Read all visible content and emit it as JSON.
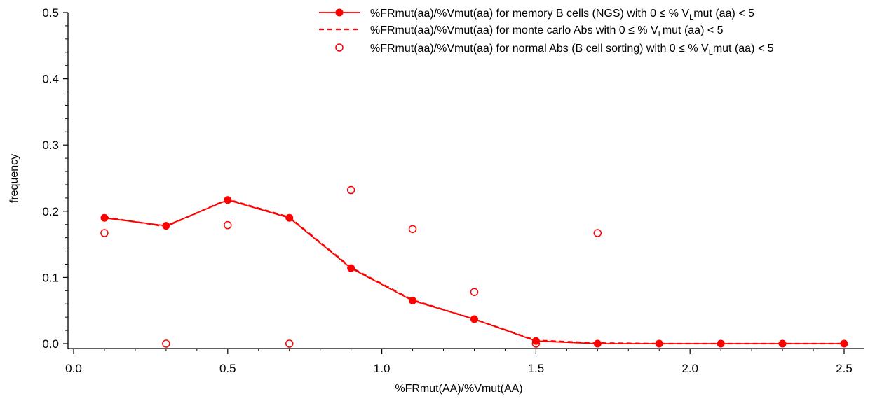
{
  "chart_data": {
    "type": "line",
    "xlabel": "%FRmut(AA)/%Vmut(AA)",
    "ylabel": "frequency",
    "xlim": [
      0.0,
      2.5
    ],
    "ylim": [
      0.0,
      0.5
    ],
    "x_ticks": [
      "0.0",
      "0.5",
      "1.0",
      "1.5",
      "2.0",
      "2.5"
    ],
    "y_ticks": [
      "0.0",
      "0.1",
      "0.2",
      "0.3",
      "0.4",
      "0.5"
    ],
    "grid": false,
    "legend_position": "top-right",
    "accent_color": "#ff0000",
    "series": [
      {
        "name": "%FRmut(aa)/%Vmut(aa) for memory B cells (NGS) with 0 ≤ % VLmut (aa) < 5",
        "legend": {
          "prefix": "%FRmut(aa)/%Vmut(aa) for memory B cells (NGS) with 0 ≤ % V",
          "sub": "L",
          "suffix": "mut (aa) < 5"
        },
        "style": "line-filled-markers",
        "x": [
          0.1,
          0.3,
          0.5,
          0.7,
          0.9,
          1.1,
          1.3,
          1.5,
          1.7,
          1.9,
          2.1,
          2.3,
          2.5
        ],
        "values": [
          0.19,
          0.178,
          0.217,
          0.19,
          0.114,
          0.065,
          0.037,
          0.004,
          0.0,
          0.0,
          0.0,
          0.0,
          0.0
        ]
      },
      {
        "name": "%FRmut(aa)/%Vmut(aa) for monte carlo Abs with 0 ≤ % VLmut (aa) < 5",
        "legend": {
          "prefix": "%FRmut(aa)/%Vmut(aa) for monte carlo Abs with 0 ≤ % V",
          "sub": "L",
          "suffix": "mut (aa) < 5"
        },
        "style": "dashed-line",
        "x": [
          0.1,
          0.3,
          0.5,
          0.7,
          0.9,
          1.1,
          1.3,
          1.5,
          1.7,
          1.9,
          2.1,
          2.3,
          2.5
        ],
        "values": [
          0.191,
          0.177,
          0.218,
          0.191,
          0.115,
          0.066,
          0.037,
          0.005,
          0.001,
          0.0,
          0.0,
          0.0,
          0.0
        ]
      },
      {
        "name": "%FRmut(aa)/%Vmut(aa) for normal Abs (B cell sorting) with 0 ≤ % VLmut (aa) < 5",
        "legend": {
          "prefix": "%FRmut(aa)/%Vmut(aa) for normal Abs (B cell sorting) with 0 ≤ % V",
          "sub": "L",
          "suffix": "mut (aa) < 5"
        },
        "style": "open-markers",
        "x": [
          0.1,
          0.3,
          0.5,
          0.7,
          0.9,
          1.1,
          1.3,
          1.5,
          1.7
        ],
        "values": [
          0.167,
          0.0,
          0.179,
          0.0,
          0.232,
          0.173,
          0.078,
          0.0,
          0.167
        ]
      }
    ]
  }
}
